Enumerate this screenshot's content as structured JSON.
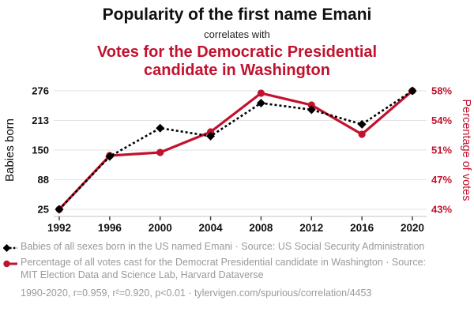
{
  "colors": {
    "accent_red": "#c1122e",
    "series_black": "#000000",
    "grid": "#e2e2e2",
    "axis_line": "#cfcfcf",
    "tick_mark": "#444444",
    "legend_gray": "#9a9a9a"
  },
  "chart_data": {
    "type": "line",
    "title": "Popularity of the first name Emani",
    "connector": "correlates with",
    "subtitle": "Votes for the Democratic Presidential candidate in Washington",
    "categories": [
      "1992",
      "1996",
      "2000",
      "2004",
      "2008",
      "2012",
      "2016",
      "2020"
    ],
    "series": [
      {
        "name": "Babies of all sexes born in the US named Emani",
        "axis": "left",
        "color": "#000000",
        "style": "dashed-diamond",
        "values": [
          25,
          137,
          197,
          180,
          250,
          236,
          205,
          276
        ]
      },
      {
        "name": "Percentage of all votes cast for the Democrat Presidential candidate in Washington",
        "axis": "right",
        "color": "#c1122e",
        "style": "solid-circle",
        "values": [
          43.0,
          49.8,
          50.2,
          52.8,
          57.7,
          56.2,
          52.5,
          58.0
        ]
      }
    ],
    "left_axis": {
      "label": "Babies born",
      "ticks": [
        "25",
        "88",
        "150",
        "213",
        "276"
      ],
      "range": [
        25,
        276
      ]
    },
    "right_axis": {
      "label": "Percentage of votes",
      "ticks": [
        "43%",
        "47%",
        "51%",
        "54%",
        "58%"
      ],
      "range": [
        43,
        58
      ]
    },
    "grid": true,
    "legend_position": "bottom"
  },
  "legend": {
    "items": [
      {
        "marker": "black-diamond-dashed",
        "text": "Babies of all sexes born in the US named Emani · Source: US Social Security Administration"
      },
      {
        "marker": "red-circle-solid",
        "text": "Percentage of all votes cast for the Democrat Presidential candidate in Washington · Source: MIT Election Data and Science Lab, Harvard Dataverse"
      }
    ],
    "footnote": "1990-2020, r=0.959, r²=0.920, p<0.01 · tylervigen.com/spurious/correlation/4453"
  }
}
